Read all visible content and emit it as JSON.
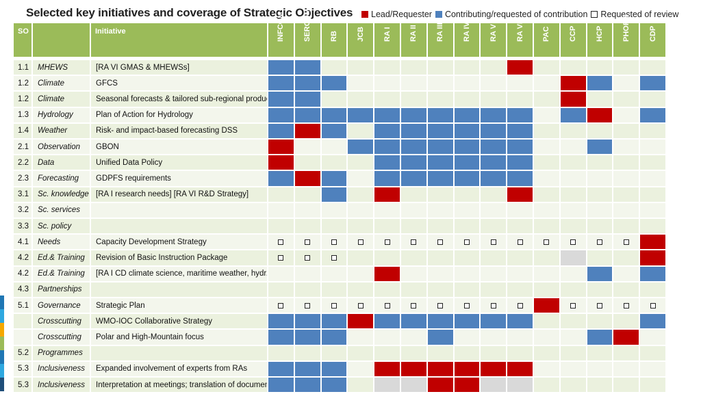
{
  "title": "Selected key initiatives and coverage of Strategic Objectives",
  "legend": {
    "lead": "Lead/Requester",
    "contributing": "Contributing/requested of contribution",
    "review": "Requested of review"
  },
  "colors": {
    "lead": "#c00000",
    "contributing": "#4f81bd",
    "header": "#9bbb59",
    "na": "#d9d9d9"
  },
  "headers": {
    "so": "SO",
    "initiative": "Initiative",
    "bodies": [
      "INFCOM",
      "SERCOM",
      "RB",
      "JCB",
      "RA I",
      "RA II",
      "RA III",
      "RA IV",
      "RA V",
      "RA VI",
      "PAC",
      "CCP",
      "HCP",
      "PHORS",
      "CDP"
    ]
  },
  "rows": [
    {
      "so": "1.1",
      "domain": "MHEWS",
      "initiative": "[RA VI GMAS & MHEWSs]",
      "marks": [
        "C",
        "C",
        "",
        "",
        "",
        "",
        "",
        "",
        "",
        "L",
        "",
        "",
        "",
        "",
        ""
      ]
    },
    {
      "so": "1.2",
      "domain": "Climate",
      "initiative": "GFCS",
      "marks": [
        "C",
        "C",
        "C",
        "",
        "",
        "",
        "",
        "",
        "",
        "",
        "",
        "L",
        "C",
        "",
        "C"
      ]
    },
    {
      "so": "1.2",
      "domain": "Climate",
      "initiative": "Seasonal forecasts & tailored sub-regional products",
      "marks": [
        "C",
        "C",
        "",
        "",
        "",
        "",
        "",
        "",
        "",
        "",
        "",
        "L",
        "",
        "",
        ""
      ]
    },
    {
      "so": "1.3",
      "domain": "Hydrology",
      "initiative": "Plan of Action for Hydrology",
      "marks": [
        "C",
        "C",
        "C",
        "C",
        "C",
        "C",
        "C",
        "C",
        "C",
        "C",
        "",
        "C",
        "L",
        "",
        "C"
      ]
    },
    {
      "so": "1.4",
      "domain": "Weather",
      "initiative": "Risk- and impact-based forecasting DSS",
      "marks": [
        "C",
        "L",
        "C",
        "",
        "C",
        "C",
        "C",
        "C",
        "C",
        "C",
        "",
        "",
        "",
        "",
        ""
      ]
    },
    {
      "so": "2.1",
      "domain": "Observation",
      "initiative": "GBON",
      "marks": [
        "L",
        "",
        "",
        "C",
        "C",
        "C",
        "C",
        "C",
        "C",
        "C",
        "",
        "",
        "C",
        "",
        ""
      ]
    },
    {
      "so": "2.2",
      "domain": "Data",
      "initiative": "Unified Data Policy",
      "marks": [
        "L",
        "",
        "",
        "",
        "C",
        "C",
        "C",
        "C",
        "C",
        "C",
        "",
        "",
        "",
        "",
        ""
      ]
    },
    {
      "so": "2.3",
      "domain": "Forecasting",
      "initiative": "GDPFS requirements",
      "marks": [
        "C",
        "L",
        "C",
        "",
        "C",
        "C",
        "C",
        "C",
        "C",
        "C",
        "",
        "",
        "",
        "",
        ""
      ]
    },
    {
      "so": "3.1",
      "domain": "Sc. knowledge",
      "initiative": "[RA I research needs] [RA VI R&D Strategy]",
      "marks": [
        "",
        "",
        "C",
        "",
        "L",
        "",
        "",
        "",
        "",
        "L",
        "",
        "",
        "",
        "",
        ""
      ]
    },
    {
      "so": "3.2",
      "domain": "Sc. services",
      "initiative": "",
      "marks": [
        "",
        "",
        "",
        "",
        "",
        "",
        "",
        "",
        "",
        "",
        "",
        "",
        "",
        "",
        ""
      ]
    },
    {
      "so": "3.3",
      "domain": "Sc. policy",
      "initiative": "",
      "marks": [
        "",
        "",
        "",
        "",
        "",
        "",
        "",
        "",
        "",
        "",
        "",
        "",
        "",
        "",
        ""
      ]
    },
    {
      "so": "4.1",
      "domain": "Needs",
      "initiative": "Capacity Development Strategy",
      "marks": [
        "R",
        "R",
        "R",
        "R",
        "R",
        "R",
        "R",
        "R",
        "R",
        "R",
        "R",
        "R",
        "R",
        "R",
        "L"
      ]
    },
    {
      "so": "4.2",
      "domain": "Ed.& Training",
      "initiative": "Revision of Basic Instruction Package",
      "marks": [
        "R",
        "R",
        "R",
        "",
        "",
        "",
        "",
        "",
        "",
        "",
        "",
        "G",
        "",
        "",
        "L"
      ]
    },
    {
      "so": "4.2",
      "domain": "Ed.& Training",
      "initiative": "[RA I CD climate science, maritime weather, hydr.]",
      "marks": [
        "",
        "",
        "",
        "",
        "L",
        "",
        "",
        "",
        "",
        "",
        "",
        "",
        "C",
        "",
        "C"
      ]
    },
    {
      "so": "4.3",
      "domain": "Partnerships",
      "initiative": "",
      "marks": [
        "",
        "",
        "",
        "",
        "",
        "",
        "",
        "",
        "",
        "",
        "",
        "",
        "",
        "",
        ""
      ]
    },
    {
      "so": "5.1",
      "domain": "Governance",
      "initiative": "Strategic Plan",
      "marks": [
        "R",
        "R",
        "R",
        "R",
        "R",
        "R",
        "R",
        "R",
        "R",
        "R",
        "L",
        "R",
        "R",
        "R",
        "R"
      ]
    },
    {
      "so": "",
      "domain": "Crosscutting",
      "initiative": "WMO-IOC Collaborative Strategy",
      "marks": [
        "C",
        "C",
        "C",
        "L",
        "C",
        "C",
        "C",
        "C",
        "C",
        "C",
        "",
        "",
        "",
        "",
        "C"
      ]
    },
    {
      "so": "",
      "domain": "Crosscutting",
      "initiative": "Polar and High-Mountain focus",
      "marks": [
        "C",
        "C",
        "C",
        "",
        "",
        "",
        "C",
        "",
        "",
        "",
        "",
        "",
        "C",
        "L",
        ""
      ]
    },
    {
      "so": "5.2",
      "domain": "Programmes",
      "initiative": "",
      "marks": [
        "",
        "",
        "",
        "",
        "",
        "",
        "",
        "",
        "",
        "",
        "",
        "",
        "",
        "",
        ""
      ]
    },
    {
      "so": "5.3",
      "domain": "Inclusiveness",
      "initiative": "Expanded involvement of experts from RAs",
      "marks": [
        "C",
        "C",
        "C",
        "",
        "L",
        "L",
        "L",
        "L",
        "L",
        "L",
        "",
        "",
        "",
        "",
        ""
      ]
    },
    {
      "so": "5.3",
      "domain": "Inclusiveness",
      "initiative": "Interpretation at meetings; translation of documents",
      "marks": [
        "C",
        "C",
        "C",
        "",
        "G",
        "G",
        "L",
        "L",
        "G",
        "G",
        "",
        "",
        "",
        "",
        ""
      ]
    }
  ]
}
